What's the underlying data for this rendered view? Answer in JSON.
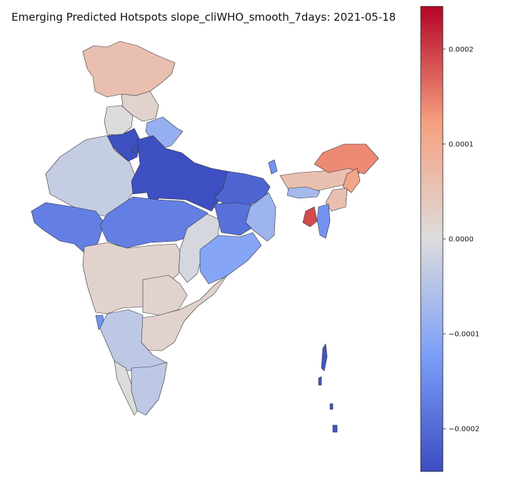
{
  "title": "Emerging Predicted Hotspots slope_cliWHO_smooth_7days: 2021-05-18",
  "chart_data": {
    "type": "choropleth",
    "title": "Emerging Predicted Hotspots slope_cliWHO_smooth_7days: 2021-05-18",
    "colormap": "coolwarm",
    "value_range": [
      -0.000245,
      0.000245
    ],
    "colorbar": {
      "ticks": [
        0.0002,
        0.0001,
        0.0,
        -0.0001,
        -0.0002
      ],
      "tick_labels": [
        "0.0002",
        "0.0001",
        "0.0000",
        "−0.0001",
        "−0.0002"
      ]
    },
    "regions": [
      {
        "name": "Jammu & Kashmir",
        "value": 6e-05
      },
      {
        "name": "Himachal Pradesh",
        "value": 2e-05
      },
      {
        "name": "Punjab",
        "value": 0.0
      },
      {
        "name": "Uttarakhand",
        "value": -9e-05
      },
      {
        "name": "Haryana",
        "value": -0.00024
      },
      {
        "name": "Delhi",
        "value": -0.00024
      },
      {
        "name": "Rajasthan",
        "value": -3e-05
      },
      {
        "name": "Uttar Pradesh",
        "value": -0.00024
      },
      {
        "name": "Bihar",
        "value": -0.00021
      },
      {
        "name": "Gujarat",
        "value": -0.00017
      },
      {
        "name": "Madhya Pradesh",
        "value": -0.00017
      },
      {
        "name": "Chhattisgarh",
        "value": -1e-05
      },
      {
        "name": "Jharkhand",
        "value": -0.00019
      },
      {
        "name": "West Bengal",
        "value": -8e-05
      },
      {
        "name": "Odisha",
        "value": -0.00011
      },
      {
        "name": "Maharashtra",
        "value": 2e-05
      },
      {
        "name": "Telangana",
        "value": 2e-05
      },
      {
        "name": "Andhra Pradesh",
        "value": 2e-05
      },
      {
        "name": "Goa",
        "value": -0.00014
      },
      {
        "name": "Karnataka",
        "value": -4e-05
      },
      {
        "name": "Kerala",
        "value": 0.0
      },
      {
        "name": "Tamil Nadu",
        "value": -4e-05
      },
      {
        "name": "Sikkim",
        "value": -0.00014
      },
      {
        "name": "Assam",
        "value": 6e-05
      },
      {
        "name": "Arunachal Pradesh",
        "value": 0.00014
      },
      {
        "name": "Nagaland",
        "value": 0.00011
      },
      {
        "name": "Meghalaya",
        "value": -7e-05
      },
      {
        "name": "Manipur",
        "value": 6e-05
      },
      {
        "name": "Mizoram",
        "value": -0.00014
      },
      {
        "name": "Tripura",
        "value": 0.00019
      },
      {
        "name": "Andaman & Nicobar Islands",
        "value": -0.00023
      }
    ]
  }
}
